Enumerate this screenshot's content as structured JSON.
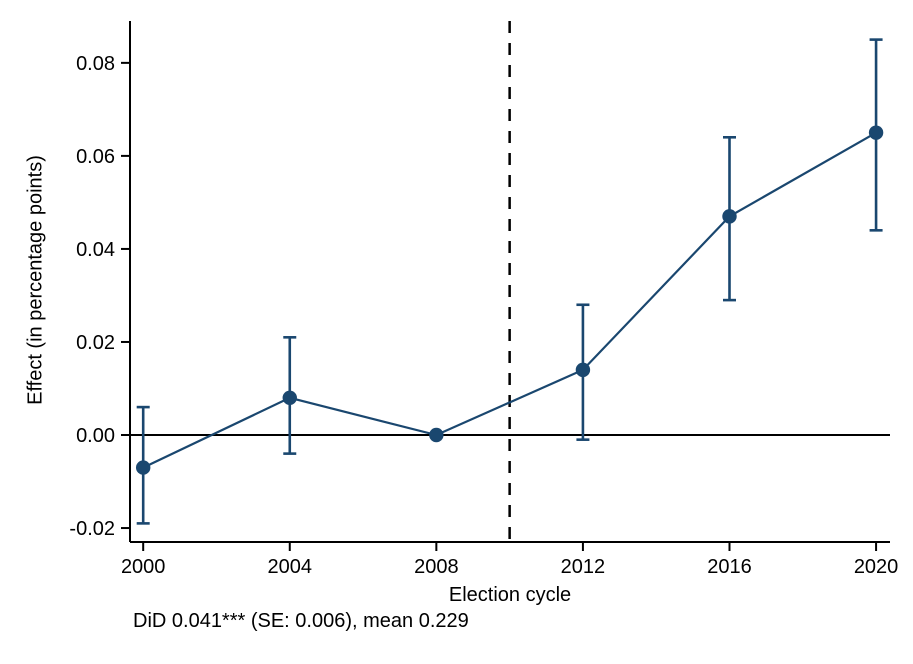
{
  "chart_data": {
    "type": "line",
    "title": "",
    "xlabel": "Election cycle",
    "ylabel": "Effect (in percentage points)",
    "caption": "DiD 0.041*** (SE: 0.006), mean 0.229",
    "x": [
      2000,
      2004,
      2008,
      2012,
      2016,
      2020
    ],
    "xtick_labels": [
      "2000",
      "2004",
      "2008",
      "2012",
      "2016",
      "2020"
    ],
    "yticks": [
      -0.02,
      0.0,
      0.02,
      0.04,
      0.06,
      0.08
    ],
    "ytick_labels": [
      "-0.02",
      "0.00",
      "0.02",
      "0.04",
      "0.06",
      "0.08"
    ],
    "series": [
      {
        "name": "effect-estimate",
        "values": [
          -0.007,
          0.008,
          0.0,
          0.014,
          0.047,
          0.065
        ],
        "ci_low": [
          -0.019,
          -0.004,
          null,
          -0.001,
          0.029,
          0.044
        ],
        "ci_high": [
          0.006,
          0.021,
          null,
          0.028,
          0.064,
          0.085
        ]
      }
    ],
    "reference_line_y": 0,
    "vline_x": 2010,
    "vline_style": "dashed",
    "xlim": [
      1999.64,
      2020.38
    ],
    "ylim": [
      -0.023,
      0.089
    ],
    "grid": false,
    "legend": "none",
    "colors": {
      "series": "#1a476f",
      "axis": "#000000",
      "zero_line": "#000000",
      "vline": "#000000",
      "background": "#ffffff"
    }
  }
}
